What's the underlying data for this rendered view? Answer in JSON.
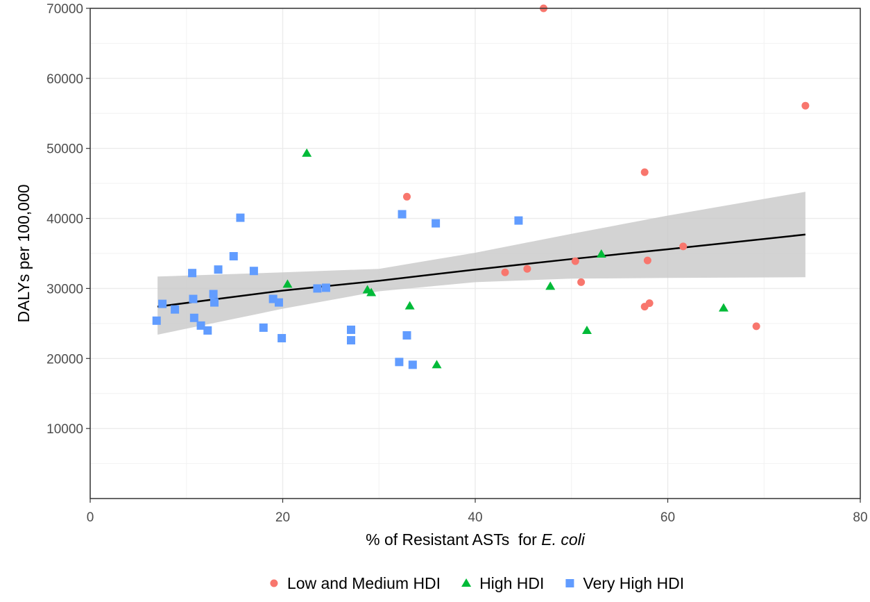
{
  "chart_data": {
    "type": "scatter",
    "xlabel_prefix": "% of Resistant ASTs  for ",
    "xlabel_italic": "E. coli",
    "ylabel": "DALYs per 100,000",
    "xlim": [
      0,
      80
    ],
    "ylim": [
      0,
      70000
    ],
    "x_ticks": [
      0,
      20,
      40,
      60,
      80
    ],
    "y_ticks": [
      10000,
      20000,
      30000,
      40000,
      50000,
      60000,
      70000
    ],
    "grid": true,
    "legend_position": "bottom",
    "series": [
      {
        "name": "Low and Medium HDI",
        "marker": "circle",
        "color": "#F8766D",
        "points": [
          [
            47.1,
            70000
          ],
          [
            74.3,
            56100
          ],
          [
            57.6,
            46600
          ],
          [
            32.9,
            43100
          ],
          [
            61.6,
            36000
          ],
          [
            57.9,
            34000
          ],
          [
            50.4,
            33900
          ],
          [
            45.4,
            32800
          ],
          [
            43.1,
            32300
          ],
          [
            51.0,
            30900
          ],
          [
            57.6,
            27400
          ],
          [
            58.1,
            27900
          ],
          [
            69.2,
            24600
          ]
        ]
      },
      {
        "name": "High HDI",
        "marker": "triangle",
        "color": "#00BA38",
        "points": [
          [
            22.5,
            49300
          ],
          [
            53.1,
            34900
          ],
          [
            20.5,
            30600
          ],
          [
            28.8,
            29800
          ],
          [
            29.2,
            29400
          ],
          [
            47.8,
            30300
          ],
          [
            33.2,
            27500
          ],
          [
            65.8,
            27200
          ],
          [
            51.6,
            24000
          ],
          [
            36.0,
            19100
          ]
        ]
      },
      {
        "name": "Very High HDI",
        "marker": "square",
        "color": "#619CFF",
        "points": [
          [
            6.9,
            25400
          ],
          [
            7.5,
            27800
          ],
          [
            8.8,
            27000
          ],
          [
            10.6,
            32200
          ],
          [
            10.7,
            28500
          ],
          [
            10.8,
            25800
          ],
          [
            11.5,
            24700
          ],
          [
            12.2,
            24000
          ],
          [
            12.8,
            29200
          ],
          [
            12.9,
            28000
          ],
          [
            13.3,
            32700
          ],
          [
            14.9,
            34600
          ],
          [
            15.6,
            40100
          ],
          [
            17.0,
            32500
          ],
          [
            18.0,
            24400
          ],
          [
            19.0,
            28500
          ],
          [
            19.6,
            28000
          ],
          [
            19.9,
            22900
          ],
          [
            23.6,
            30000
          ],
          [
            24.5,
            30100
          ],
          [
            27.1,
            24100
          ],
          [
            27.1,
            22600
          ],
          [
            32.1,
            19500
          ],
          [
            32.4,
            40600
          ],
          [
            32.9,
            23300
          ],
          [
            33.5,
            19100
          ],
          [
            35.9,
            39300
          ],
          [
            44.5,
            39700
          ]
        ]
      }
    ],
    "trend": {
      "x": [
        7.0,
        20.0,
        30.0,
        40.0,
        50.0,
        60.0,
        74.3
      ],
      "y": [
        27400,
        29700,
        31100,
        32700,
        34200,
        35600,
        37700
      ],
      "lower": [
        23400,
        27100,
        29600,
        30900,
        31400,
        31500,
        31600
      ],
      "upper": [
        31700,
        32300,
        32800,
        35100,
        37800,
        40400,
        43800
      ]
    }
  }
}
